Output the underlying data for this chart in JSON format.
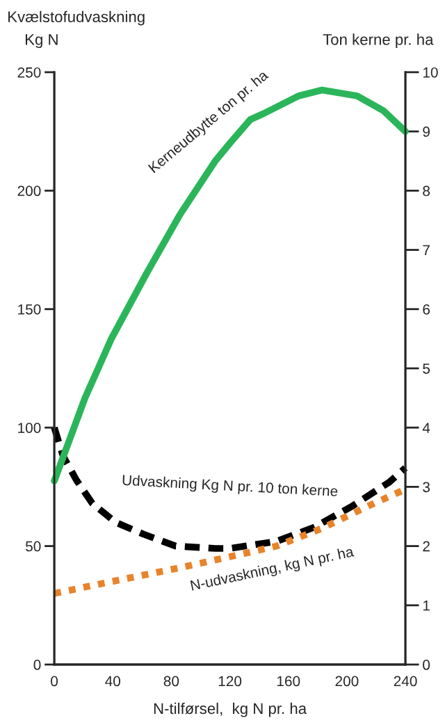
{
  "chart_data": {
    "type": "line",
    "title": "Kvælstofudvaskning",
    "ylabel": "Kg N",
    "y2label": "Ton kerne pr. ha",
    "xlabel": "N-tilførsel,  kg N pr. ha",
    "xlim": [
      0,
      240
    ],
    "xticks": [
      0,
      40,
      80,
      120,
      160,
      200,
      240
    ],
    "ylim": [
      0,
      250
    ],
    "yticks": [
      0,
      50,
      100,
      150,
      200,
      250
    ],
    "y2lim": [
      0,
      10
    ],
    "y2ticks": [
      0,
      1,
      2,
      3,
      4,
      5,
      6,
      7,
      8,
      9,
      10
    ],
    "grid": false,
    "legend": false,
    "series": [
      {
        "name": "Kerneudbytte ton pr. ha",
        "color": "#2bb55a",
        "axis": "y2",
        "line_style": "solid",
        "x": [
          0,
          21,
          39,
          63,
          86,
          110,
          120,
          134,
          143,
          167,
          183,
          207,
          225,
          240
        ],
        "values": [
          3.1,
          4.5,
          5.5,
          6.6,
          7.6,
          8.5,
          8.8,
          9.2,
          9.3,
          9.6,
          9.7,
          9.6,
          9.35,
          9.0
        ]
      },
      {
        "name": "Udvaskning Kg N pr. 10 ton kerne",
        "color": "#000000",
        "line_style": "dashed",
        "x": [
          0,
          6,
          15,
          26,
          42,
          61,
          83,
          110,
          120,
          152,
          178,
          204,
          229,
          240
        ],
        "values": [
          100,
          88,
          78,
          68,
          60,
          55,
          50,
          49,
          49,
          52,
          58,
          67,
          77,
          83
        ]
      },
      {
        "name": "N-udvaskning, kg N pr. ha",
        "color": "#e8832a",
        "line_style": "dotted",
        "x": [
          0,
          39,
          87,
          131,
          152,
          183,
          215,
          240
        ],
        "values": [
          30,
          35,
          41,
          47,
          50,
          57.5,
          67,
          74
        ]
      }
    ]
  }
}
